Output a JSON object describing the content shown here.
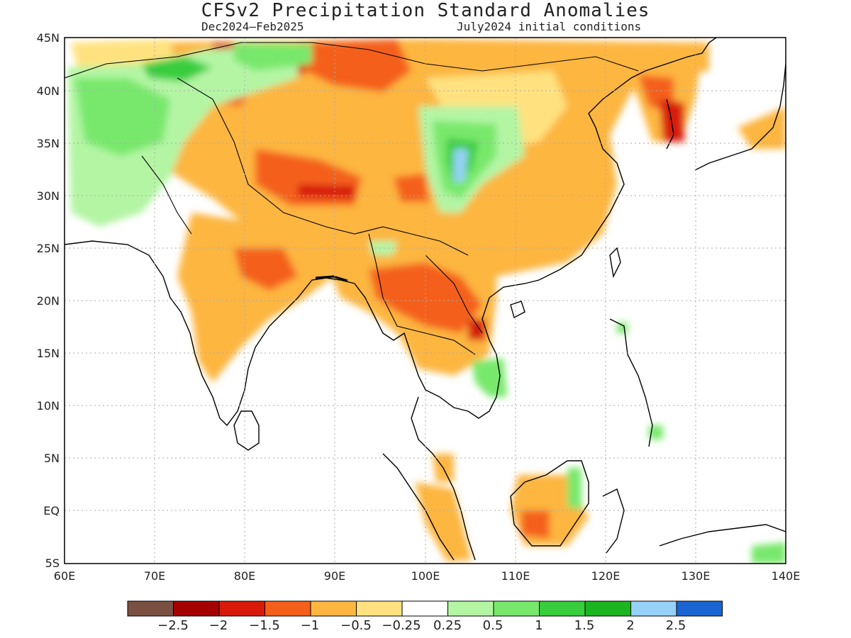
{
  "title": "CFSv2 Precipitation Standard Anomalies",
  "period": "Dec2024–Feb2025",
  "init": "July2024 initial conditions",
  "lat_labels": [
    "45N",
    "40N",
    "35N",
    "30N",
    "25N",
    "20N",
    "15N",
    "10N",
    "5N",
    "EQ",
    "5S"
  ],
  "lon_labels": [
    "60E",
    "70E",
    "80E",
    "90E",
    "100E",
    "110E",
    "120E",
    "130E",
    "140E"
  ],
  "colorbar": {
    "colors": [
      "#7a5043",
      "#a50000",
      "#d71a0a",
      "#f4601a",
      "#fdb640",
      "#ffe27f",
      "#ffffff",
      "#b4f5a4",
      "#78e86c",
      "#37cd3c",
      "#1db51f",
      "#96d1f8",
      "#1a65d1"
    ],
    "labels": [
      "−2.5",
      "−2",
      "−1.5",
      "−1",
      "−0.5",
      "−0.25",
      "0.25",
      "0.5",
      "1",
      "1.5",
      "2",
      "2.5"
    ]
  }
}
